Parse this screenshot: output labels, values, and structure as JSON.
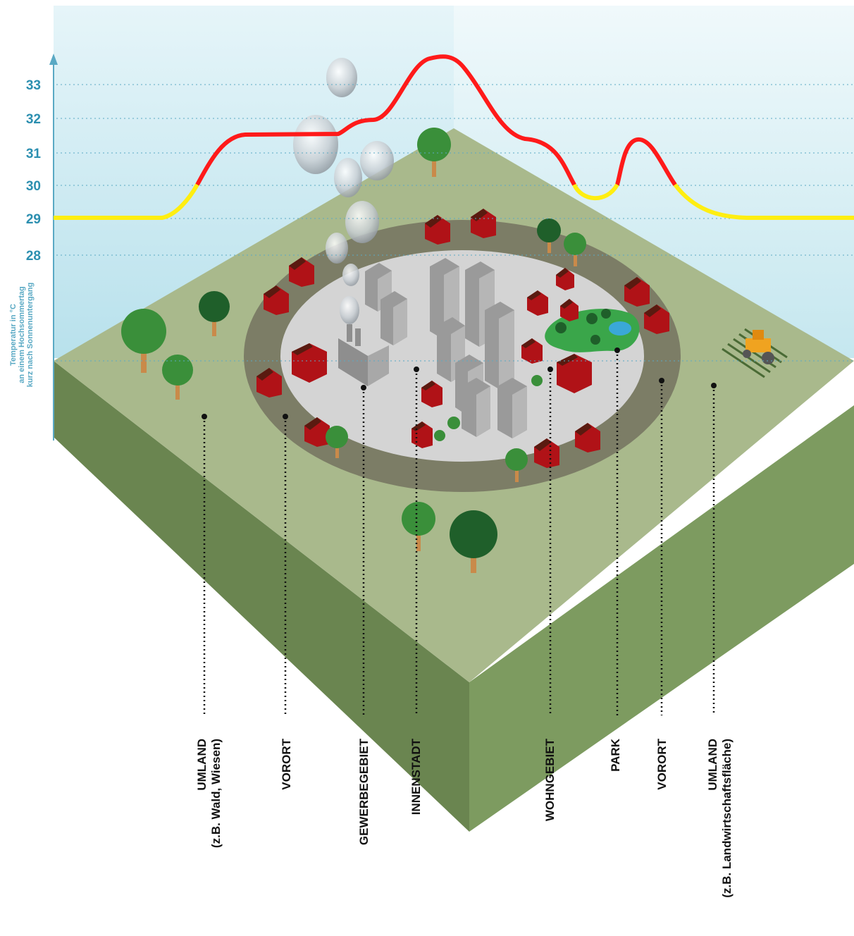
{
  "axis": {
    "title_line1": "Temperatur in °C",
    "title_line2": "an einem Hochsommertag",
    "title_line3": "kurz nach Sonnenuntergang",
    "ticks": [
      "33",
      "32",
      "31",
      "30",
      "29",
      "28"
    ]
  },
  "zones": [
    {
      "line1": "UMLAND",
      "line2": "(z.B. Wald, Wiesen)"
    },
    {
      "line1": "VORORT",
      "line2": ""
    },
    {
      "line1": "GEWERBEGEBIET",
      "line2": ""
    },
    {
      "line1": "INNENSTADT",
      "line2": ""
    },
    {
      "line1": "WOHNGEBIET",
      "line2": ""
    },
    {
      "line1": "PARK",
      "line2": ""
    },
    {
      "line1": "VORORT",
      "line2": ""
    },
    {
      "line1": "UMLAND",
      "line2": "(z.B. Landwirtschaftsfläche)"
    }
  ],
  "curve": {
    "hot_color": "#ff1a1a",
    "cool_color": "#ffee11",
    "threshold_c": 30
  },
  "colors": {
    "sky": "#bfe6ef",
    "ground_top": "#a9b98c",
    "ground_side_left": "#6e8a55",
    "ground_side_right": "#7d9b60",
    "suburb_ring": "#7c7d66",
    "city_core": "#d4d4d4",
    "house": "#b01217",
    "tree": "#3a8f3a",
    "park": "#3aa64a"
  }
}
